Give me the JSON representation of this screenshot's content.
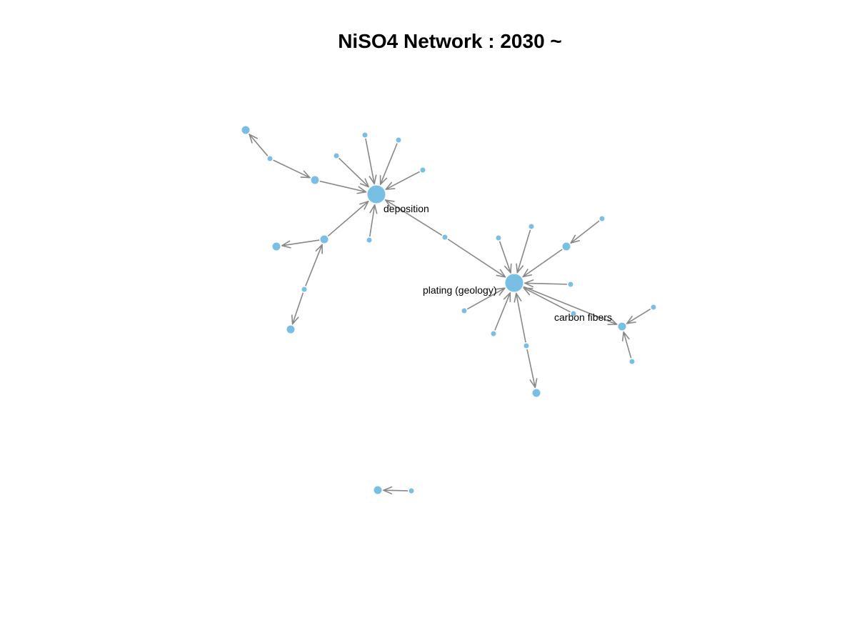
{
  "title": "NiSO4 Network : 2030 ~",
  "colors": {
    "node": "#79bfe3",
    "node_stroke": "#ffffff",
    "edge": "#888888",
    "label": "#000000"
  },
  "nodes": [
    {
      "id": "deposition",
      "label": "deposition",
      "size": "large"
    },
    {
      "id": "plating",
      "label": "plating (geology)",
      "size": "large"
    },
    {
      "id": "carbon",
      "label": "carbon fibers",
      "size": "medium"
    },
    {
      "id": "n1",
      "label": "",
      "size": "medium"
    },
    {
      "id": "n2",
      "label": "",
      "size": "small"
    },
    {
      "id": "n3",
      "label": "",
      "size": "medium"
    },
    {
      "id": "n4",
      "label": "",
      "size": "small"
    },
    {
      "id": "n5",
      "label": "",
      "size": "small"
    },
    {
      "id": "n6",
      "label": "",
      "size": "small"
    },
    {
      "id": "n7",
      "label": "",
      "size": "small"
    },
    {
      "id": "n8",
      "label": "",
      "size": "medium"
    },
    {
      "id": "n9",
      "label": "",
      "size": "medium"
    },
    {
      "id": "n10",
      "label": "",
      "size": "small"
    },
    {
      "id": "n11",
      "label": "",
      "size": "small"
    },
    {
      "id": "n12",
      "label": "",
      "size": "medium"
    },
    {
      "id": "n13",
      "label": "",
      "size": "small"
    },
    {
      "id": "n14",
      "label": "",
      "size": "small"
    },
    {
      "id": "n15",
      "label": "",
      "size": "small"
    },
    {
      "id": "n16",
      "label": "",
      "size": "medium"
    },
    {
      "id": "n17",
      "label": "",
      "size": "small"
    },
    {
      "id": "n18",
      "label": "",
      "size": "small"
    },
    {
      "id": "n19",
      "label": "",
      "size": "small"
    },
    {
      "id": "n20",
      "label": "",
      "size": "small"
    },
    {
      "id": "n21",
      "label": "",
      "size": "small"
    },
    {
      "id": "n22",
      "label": "",
      "size": "small"
    },
    {
      "id": "n23",
      "label": "",
      "size": "medium"
    },
    {
      "id": "n24",
      "label": "",
      "size": "small"
    },
    {
      "id": "n25",
      "label": "",
      "size": "small"
    },
    {
      "id": "n26",
      "label": "",
      "size": "medium"
    },
    {
      "id": "n27",
      "label": "",
      "size": "small"
    }
  ],
  "edges": [
    {
      "source": "n2",
      "target": "n1"
    },
    {
      "source": "n2",
      "target": "n3"
    },
    {
      "source": "n3",
      "target": "deposition"
    },
    {
      "source": "n4",
      "target": "deposition"
    },
    {
      "source": "n5",
      "target": "deposition"
    },
    {
      "source": "n6",
      "target": "deposition"
    },
    {
      "source": "n7",
      "target": "deposition"
    },
    {
      "source": "n9",
      "target": "deposition"
    },
    {
      "source": "n9",
      "target": "n8"
    },
    {
      "source": "n10",
      "target": "deposition"
    },
    {
      "source": "n11",
      "target": "n9"
    },
    {
      "source": "n11",
      "target": "n12"
    },
    {
      "source": "n13",
      "target": "deposition"
    },
    {
      "source": "n13",
      "target": "plating"
    },
    {
      "source": "n14",
      "target": "plating"
    },
    {
      "source": "n15",
      "target": "plating"
    },
    {
      "source": "n16",
      "target": "plating"
    },
    {
      "source": "n17",
      "target": "n16"
    },
    {
      "source": "n18",
      "target": "plating"
    },
    {
      "source": "n19",
      "target": "plating"
    },
    {
      "source": "n20",
      "target": "plating"
    },
    {
      "source": "n21",
      "target": "plating"
    },
    {
      "source": "n22",
      "target": "plating"
    },
    {
      "source": "n22",
      "target": "n23"
    },
    {
      "source": "n24",
      "target": "carbon"
    },
    {
      "source": "n25",
      "target": "carbon"
    },
    {
      "source": "plating",
      "target": "carbon"
    },
    {
      "source": "n27",
      "target": "n26"
    }
  ]
}
